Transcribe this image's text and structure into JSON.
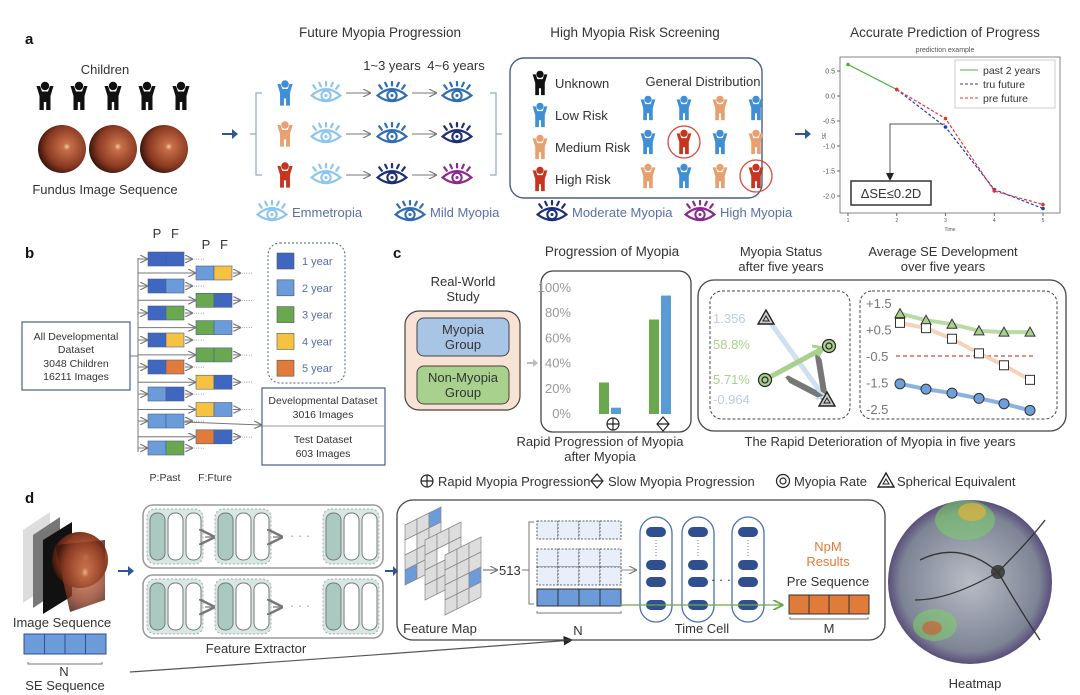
{
  "panel_a": {
    "label": "a",
    "children_label": "Children",
    "fundus_label": "Fundus Image Sequence",
    "progression_title": "Future Myopia Progression",
    "years_1": "1~3 years",
    "years_2": "4~6 years",
    "rows": [
      {
        "person_color": "#3e8fd6",
        "stages": [
          "emmetropia",
          "mild",
          "mild"
        ]
      },
      {
        "person_color": "#e9a070",
        "stages": [
          "emmetropia",
          "mild",
          "moderate"
        ]
      },
      {
        "person_color": "#c9341f",
        "stages": [
          "emmetropia",
          "moderate",
          "high"
        ]
      }
    ],
    "screening_title": "High Myopia Risk Screening",
    "risk_legend": [
      {
        "label": "Unknown",
        "color": "#111111"
      },
      {
        "label": "Low Risk",
        "color": "#3e8fd6"
      },
      {
        "label": "Medium Risk",
        "color": "#e9a070"
      },
      {
        "label": "High Risk",
        "color": "#c9341f"
      }
    ],
    "distribution_title": "General Distribution",
    "distribution": [
      [
        "low",
        "low",
        "medium",
        "low"
      ],
      [
        "low",
        "high-circled",
        "low",
        "medium"
      ],
      [
        "medium",
        "low",
        "medium",
        "high-circled"
      ]
    ],
    "eye_legend": [
      {
        "label": "Emmetropia",
        "color": "#8cc6ec"
      },
      {
        "label": "Mild Myopia",
        "color": "#2f6db5"
      },
      {
        "label": "Moderate Myopia",
        "color": "#1c2f78"
      },
      {
        "label": "High Myopia",
        "color": "#8a2a8f"
      }
    ],
    "prediction_title": "Accurate Prediction of Progress",
    "annotation": "ΔSE≤0.2D"
  },
  "chart_data": [
    {
      "type": "line",
      "title": "prediction example",
      "ylabel": "SE",
      "xlabel": "Time",
      "x": [
        1,
        2,
        3,
        4,
        5
      ],
      "xticks": [
        "1",
        "2",
        "3",
        "4",
        "5"
      ],
      "yticks": [
        "0.5",
        "0.0",
        "-0.5",
        "-1.0",
        "-1.5",
        "-2.0"
      ],
      "ylim": [
        -2.3,
        0.75
      ],
      "legend": "top-right",
      "series": [
        {
          "name": "past 2 years",
          "color": "#4caf3a",
          "x": [
            1,
            2
          ],
          "values": [
            0.63,
            0.13
          ]
        },
        {
          "name": "tru future",
          "color": "#1f3fbf",
          "x": [
            2,
            3,
            4,
            5
          ],
          "values": [
            0.13,
            -0.62,
            -1.87,
            -2.25
          ]
        },
        {
          "name": "pre future",
          "color": "#e8322c",
          "x": [
            2,
            3,
            4,
            5
          ],
          "values": [
            0.13,
            -0.45,
            -1.9,
            -2.17
          ]
        }
      ]
    },
    {
      "type": "bar",
      "title": "Progression of Myopia",
      "categories": [
        "Rapid Myopia Progression",
        "Slow Myopia Progression"
      ],
      "yticks": [
        "100%",
        "80%",
        "60%",
        "40%",
        "20%",
        "0%"
      ],
      "ylim": [
        0,
        100
      ],
      "series": [
        {
          "color": "#6aa84f",
          "values": [
            25,
            75
          ]
        },
        {
          "color": "#5b9bd5",
          "values": [
            5,
            94
          ]
        }
      ],
      "xlabel_lines": [
        "Rapid Progression of Myopia",
        "after Myopia"
      ]
    },
    {
      "type": "line",
      "title_lines": [
        "Average SE Development",
        "over five years"
      ],
      "yticks": [
        "+1.5",
        "+0.5",
        "-0.5",
        "-1.5",
        "-2.5"
      ],
      "ylim": [
        -2.7,
        1.6
      ],
      "threshold": -0.5,
      "series": [
        {
          "marker": "triangle",
          "color": "#a9d18e",
          "values": [
            1.1,
            0.85,
            0.7,
            0.45,
            0.4,
            0.4
          ]
        },
        {
          "marker": "square",
          "color": "#f4c7aa",
          "values": [
            0.75,
            0.55,
            0.15,
            -0.4,
            -0.85,
            -1.4
          ]
        },
        {
          "marker": "circle",
          "color": "#6d9fd8",
          "values": [
            -1.55,
            -1.75,
            -1.9,
            -2.1,
            -2.3,
            -2.55
          ]
        }
      ]
    }
  ],
  "panel_b": {
    "label": "b",
    "all_dataset": [
      "All Developmental",
      "Dataset",
      "3048 Children",
      "16211 Images"
    ],
    "pf_labels": [
      "P",
      "F"
    ],
    "year_colors": {
      "1": "#3f67c0",
      "2": "#6b9bd8",
      "3": "#6aa84f",
      "4": "#f5c242",
      "5": "#e07b39"
    },
    "left_pairs": [
      [
        1,
        1
      ],
      [
        1,
        2
      ],
      [
        1,
        3
      ],
      [
        1,
        4
      ],
      [
        1,
        5
      ],
      [
        2,
        1
      ],
      [
        2,
        2
      ],
      [
        2,
        3
      ]
    ],
    "right_pairs": [
      [
        2,
        4
      ],
      [
        3,
        1
      ],
      [
        3,
        2
      ],
      [
        3,
        3
      ],
      [
        4,
        1
      ],
      [
        4,
        2
      ],
      [
        5,
        1
      ]
    ],
    "ellipsis": "·····",
    "legend": [
      {
        "year": "1",
        "label": "1 year"
      },
      {
        "year": "2",
        "label": "2 year"
      },
      {
        "year": "3",
        "label": "3 year"
      },
      {
        "year": "4",
        "label": "4 year"
      },
      {
        "year": "5",
        "label": "5 year"
      }
    ],
    "dev_dataset": [
      "Developmental Dataset",
      "3016 Images"
    ],
    "test_dataset": [
      "Test Dataset",
      "603 Images"
    ],
    "past_label": "P:Past",
    "future_label": "F:Fture"
  },
  "panel_c": {
    "label": "c",
    "study_title": [
      "Real-World",
      "Study"
    ],
    "myopia_group": [
      "Myopia",
      "Group"
    ],
    "non_myopia_group": [
      "Non-Myopia",
      "Group"
    ],
    "status_title": [
      "Myopia Status",
      "after five years"
    ],
    "status_values": {
      "se_start": "1.356",
      "rate_end": "58.8%",
      "rate_start": "5.71%",
      "se_end": "-0.964"
    },
    "deterioration_caption": "The Rapid Deterioration of Myopia in five years",
    "symbol_legend": [
      {
        "symbol": "circle-plus",
        "label": "Rapid Myopia Progression"
      },
      {
        "symbol": "diamond-line",
        "label": "Slow Myopia Progression"
      },
      {
        "symbol": "double-circle",
        "label": "Myopia Rate"
      },
      {
        "symbol": "double-triangle",
        "label": "Spherical Equivalent"
      }
    ]
  },
  "panel_d": {
    "label": "d",
    "image_sequence": "Image Sequence",
    "n_label": "N",
    "se_sequence": "SE Sequence",
    "feature_extractor": "Feature Extractor",
    "feature_map": "Feature  Map",
    "dim_label": "513",
    "time_cell": "Time Cell",
    "npm_results": [
      "NpM",
      "Results"
    ],
    "npm_color": "#e07b39",
    "pre_sequence": "Pre Sequence",
    "m_label": "M",
    "heatmap": "Heatmap",
    "dots": "· · ·"
  }
}
